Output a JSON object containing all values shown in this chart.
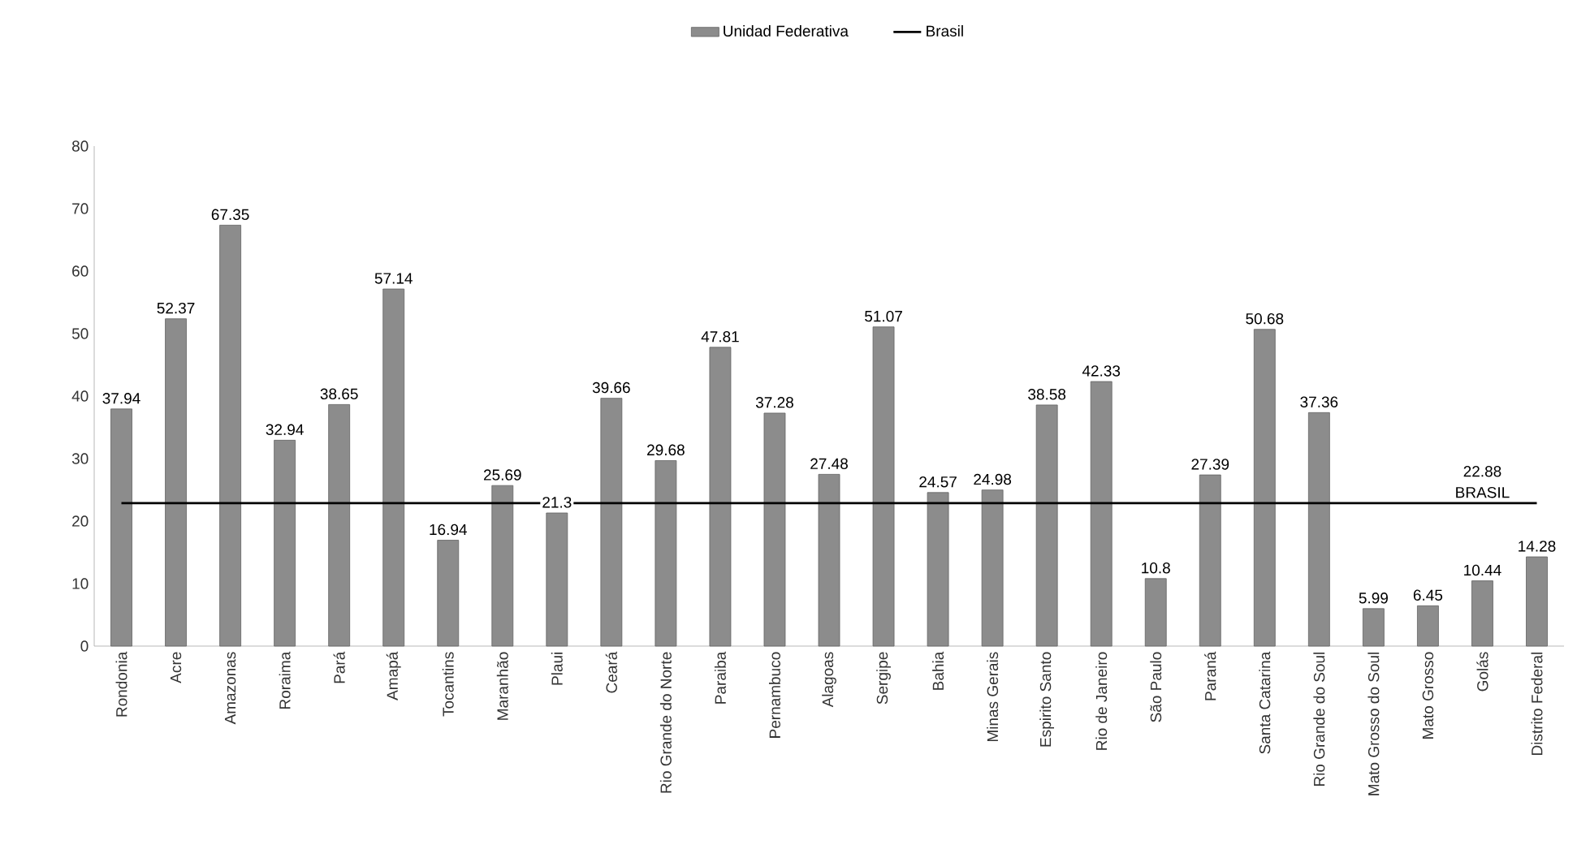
{
  "chart_data": {
    "type": "bar",
    "categories": [
      "Rondonia",
      "Acre",
      "Amazonas",
      "Roraima",
      "Pará",
      "Amapá",
      "Tocantins",
      "Maranhão",
      "Plaui",
      "Ceará",
      "Rio Grande do Norte",
      "Paraiba",
      "Pernambuco",
      "Alagoas",
      "Sergipe",
      "Bahia",
      "Minas Gerais",
      "Espirito Santo",
      "Rio de Janeiro",
      "São Paulo",
      "Paraná",
      "Santa Catarina",
      "Rio Grande do Soul",
      "Mato Grosso do Soul",
      "Mato Grosso",
      "Golás",
      "Distrito Federal"
    ],
    "series": [
      {
        "name": "Unidad Federativa",
        "color": "#8c8c8c",
        "values": [
          37.94,
          52.37,
          67.35,
          32.94,
          38.65,
          57.14,
          16.94,
          25.69,
          21.3,
          39.66,
          29.68,
          47.81,
          37.28,
          27.48,
          51.07,
          24.57,
          24.98,
          38.58,
          42.33,
          10.8,
          27.39,
          50.68,
          37.36,
          5.99,
          6.45,
          10.44,
          14.28
        ]
      },
      {
        "name": "Brasil",
        "type": "line",
        "color": "#000000",
        "values": [
          22.88,
          22.88,
          22.88,
          22.88,
          22.88,
          22.88,
          22.88,
          22.88,
          22.88,
          22.88,
          22.88,
          22.88,
          22.88,
          22.88,
          22.88,
          22.88,
          22.88,
          22.88,
          22.88,
          22.88,
          22.88,
          22.88,
          22.88,
          22.88,
          22.88,
          22.88,
          22.88
        ],
        "value_labels": [
          null,
          null,
          null,
          null,
          null,
          null,
          null,
          null,
          null,
          null,
          null,
          null,
          null,
          null,
          null,
          null,
          null,
          null,
          null,
          null,
          null,
          null,
          null,
          null,
          null,
          "22.88",
          null
        ]
      }
    ],
    "annotations": [
      {
        "text": "BRASIL",
        "x": "Golás",
        "y": 22.88
      }
    ],
    "ylim": [
      0,
      80
    ],
    "yticks": [
      0,
      10,
      20,
      30,
      40,
      50,
      60,
      70,
      80
    ],
    "data_labels": true,
    "grid": false,
    "legend": "top"
  }
}
